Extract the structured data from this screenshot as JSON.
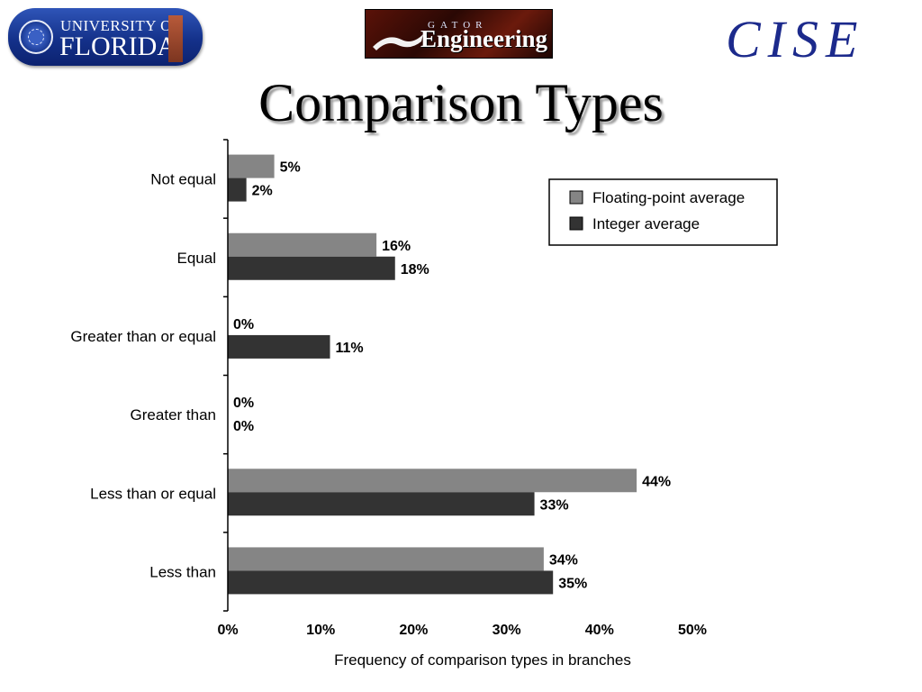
{
  "header": {
    "uf_logo": {
      "line1": "UNIVERSITY OF",
      "line2": "FLORIDA"
    },
    "gator_logo": {
      "top": "GATOR",
      "main": "Engineering"
    },
    "cise_logo": "CISE"
  },
  "title": "Comparison Types",
  "colors": {
    "floating": "#858585",
    "integer": "#333333"
  },
  "chart_data": {
    "type": "bar",
    "orientation": "horizontal",
    "categories": [
      "Not equal",
      "Equal",
      "Greater than or equal",
      "Greater than",
      "Less than or equal",
      "Less than"
    ],
    "series": [
      {
        "name": "Floating-point average",
        "values": [
          5,
          16,
          0,
          0,
          44,
          34
        ]
      },
      {
        "name": "Integer average",
        "values": [
          2,
          18,
          11,
          0,
          33,
          35
        ]
      }
    ],
    "value_labels": [
      [
        "5%",
        "16%",
        "0%",
        "0%",
        "44%",
        "34%"
      ],
      [
        "2%",
        "18%",
        "11%",
        "0%",
        "33%",
        "35%"
      ]
    ],
    "xlabel": "Frequency of comparison types in branches",
    "xlim": [
      0,
      50
    ],
    "xticks": [
      0,
      10,
      20,
      30,
      40,
      50
    ],
    "xtick_labels": [
      "0%",
      "10%",
      "20%",
      "30%",
      "40%",
      "50%"
    ],
    "grid": false,
    "legend_position": "top-right"
  }
}
